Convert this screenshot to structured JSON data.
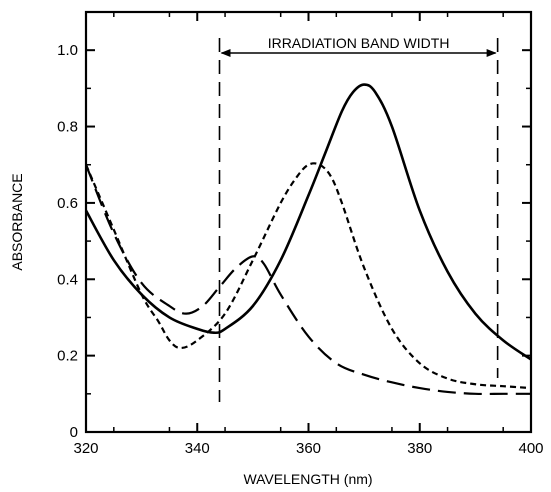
{
  "chart_data": {
    "type": "line",
    "title": "",
    "xlabel": "WAVELENGTH (nm)",
    "ylabel": "ABSORBANCE",
    "xlim": [
      320,
      400
    ],
    "ylim": [
      0,
      1.1
    ],
    "x_ticks": [
      320,
      340,
      360,
      380,
      400
    ],
    "x_tick_labels": [
      "320",
      "340",
      "360",
      "380",
      "400"
    ],
    "y_ticks": [
      0,
      0.2,
      0.4,
      0.6,
      0.8,
      1.0
    ],
    "y_tick_labels": [
      "0",
      "0.2",
      "0.4",
      "0.6",
      "0.8",
      "1.0"
    ],
    "grid": false,
    "annotation": {
      "text": "IRRADIATION BAND WIDTH",
      "x_start": 344,
      "x_end": 394
    },
    "series": [
      {
        "style": "solid",
        "color": "#000000",
        "x": [
          320,
          325,
          330,
          335,
          340,
          343,
          345,
          350,
          355,
          360,
          363,
          366,
          368,
          370,
          372,
          375,
          380,
          385,
          390,
          395,
          400
        ],
        "y": [
          0.58,
          0.45,
          0.36,
          0.3,
          0.27,
          0.26,
          0.27,
          0.33,
          0.45,
          0.62,
          0.73,
          0.84,
          0.89,
          0.91,
          0.89,
          0.8,
          0.58,
          0.42,
          0.31,
          0.24,
          0.19
        ]
      },
      {
        "style": "short-dash",
        "color": "#000000",
        "x": [
          320,
          325,
          330,
          333,
          335,
          337,
          340,
          345,
          350,
          355,
          358,
          360,
          362,
          364,
          366,
          370,
          375,
          380,
          385,
          390,
          395,
          400
        ],
        "y": [
          0.7,
          0.53,
          0.36,
          0.29,
          0.24,
          0.22,
          0.24,
          0.31,
          0.45,
          0.6,
          0.67,
          0.7,
          0.7,
          0.67,
          0.6,
          0.43,
          0.27,
          0.18,
          0.14,
          0.125,
          0.12,
          0.115
        ]
      },
      {
        "style": "long-dash",
        "color": "#000000",
        "x": [
          320,
          325,
          330,
          335,
          338,
          341,
          344,
          347,
          350,
          352,
          355,
          360,
          365,
          370,
          375,
          380,
          385,
          390,
          395,
          400
        ],
        "y": [
          0.7,
          0.52,
          0.39,
          0.33,
          0.31,
          0.33,
          0.38,
          0.43,
          0.46,
          0.44,
          0.36,
          0.25,
          0.18,
          0.15,
          0.13,
          0.115,
          0.105,
          0.1,
          0.1,
          0.1
        ]
      }
    ]
  }
}
